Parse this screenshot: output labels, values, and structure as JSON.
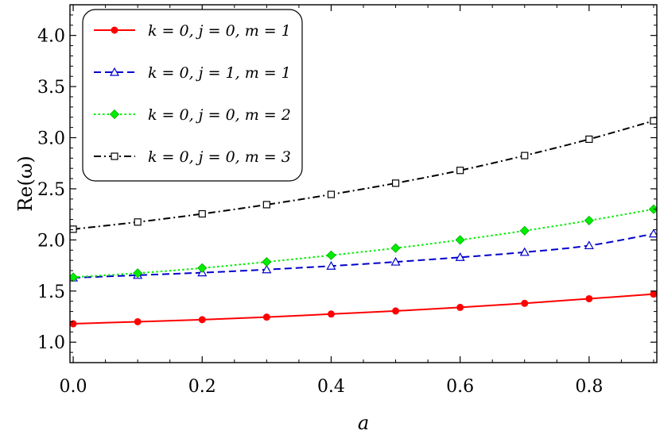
{
  "chart_data": {
    "type": "line",
    "title": "",
    "xlabel": "a",
    "ylabel": "Re(ω)",
    "xlim": [
      -0.005,
      0.905
    ],
    "ylim": [
      0.8,
      4.3
    ],
    "xticks": [
      0.0,
      0.2,
      0.4,
      0.6,
      0.8
    ],
    "xtick_labels": [
      "0.0",
      "0.2",
      "0.4",
      "0.6",
      "0.8"
    ],
    "yticks": [
      1.0,
      1.5,
      2.0,
      2.5,
      3.0,
      3.5,
      4.0
    ],
    "ytick_labels": [
      "1.0",
      "1.5",
      "2.0",
      "2.5",
      "3.0",
      "3.5",
      "4.0"
    ],
    "grid": false,
    "legend_position": "top-left",
    "x": [
      0.0,
      0.1,
      0.2,
      0.3,
      0.4,
      0.5,
      0.6,
      0.7,
      0.8,
      0.9
    ],
    "series": [
      {
        "name": "k = 0, j = 0, m = 1",
        "color": "#ff0000",
        "dash": "solid",
        "marker": "circle",
        "values": [
          1.18,
          1.2,
          1.22,
          1.245,
          1.275,
          1.305,
          1.34,
          1.38,
          1.425,
          1.47
        ]
      },
      {
        "name": "k = 0, j = 1, m = 1",
        "color": "#0000cc",
        "dash": "dashed",
        "marker": "triangle",
        "values": [
          1.63,
          1.655,
          1.68,
          1.71,
          1.745,
          1.785,
          1.83,
          1.88,
          1.945,
          2.06
        ]
      },
      {
        "name": "k = 0, j = 0, m = 2",
        "color": "#00ee00",
        "dash": "dotted",
        "marker": "diamond",
        "values": [
          1.635,
          1.675,
          1.725,
          1.785,
          1.85,
          1.92,
          2.0,
          2.09,
          2.19,
          2.3
        ]
      },
      {
        "name": "k = 0, j = 0, m = 3",
        "color": "#000000",
        "dash": "dashdot",
        "marker": "square",
        "values": [
          2.105,
          2.175,
          2.255,
          2.345,
          2.445,
          2.555,
          2.68,
          2.825,
          2.985,
          3.165
        ]
      }
    ]
  }
}
